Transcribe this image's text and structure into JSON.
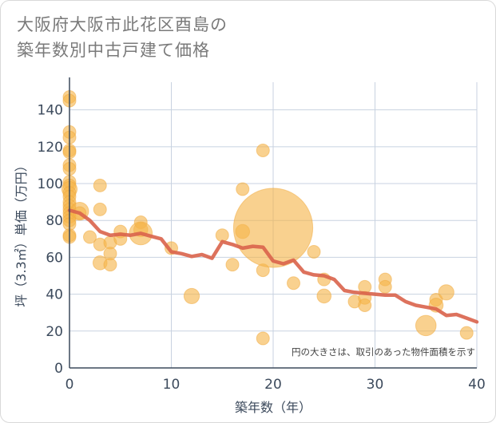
{
  "title_line1": "大阪府大阪市此花区酉島の",
  "title_line2": "築年数別中古戸建て価格",
  "chart_data": {
    "type": "scatter",
    "xlabel": "築年数（年）",
    "ylabel": "坪（3.3㎡）単価（万円）",
    "xlim": [
      0,
      40
    ],
    "ylim": [
      0,
      155
    ],
    "xticks": [
      0,
      10,
      20,
      30,
      40
    ],
    "yticks": [
      0,
      20,
      40,
      60,
      80,
      100,
      120,
      140
    ],
    "grid": true,
    "note": "円の大きさは、取引のあった物件面積を示す",
    "colors": {
      "bubble": "#f5b54a",
      "trend": "#d9634b",
      "grid": "#c8d2e0",
      "axis": "#3c4a5c"
    },
    "points": [
      {
        "x": 0,
        "y": 147,
        "s": 1
      },
      {
        "x": 0,
        "y": 145,
        "s": 1
      },
      {
        "x": 0,
        "y": 128,
        "s": 1
      },
      {
        "x": 0,
        "y": 125,
        "s": 1
      },
      {
        "x": 0,
        "y": 118,
        "s": 1
      },
      {
        "x": 0,
        "y": 117,
        "s": 1
      },
      {
        "x": 0,
        "y": 110,
        "s": 1
      },
      {
        "x": 0,
        "y": 108,
        "s": 1
      },
      {
        "x": 0,
        "y": 101,
        "s": 1
      },
      {
        "x": 0,
        "y": 99,
        "s": 1
      },
      {
        "x": 0,
        "y": 97,
        "s": 1.2
      },
      {
        "x": 0,
        "y": 95,
        "s": 1
      },
      {
        "x": 0,
        "y": 93,
        "s": 1
      },
      {
        "x": 0,
        "y": 90,
        "s": 1
      },
      {
        "x": 0,
        "y": 88,
        "s": 1
      },
      {
        "x": 0,
        "y": 86,
        "s": 1
      },
      {
        "x": 0,
        "y": 84,
        "s": 1
      },
      {
        "x": 0,
        "y": 82,
        "s": 1
      },
      {
        "x": 0,
        "y": 80,
        "s": 1
      },
      {
        "x": 0,
        "y": 78,
        "s": 1
      },
      {
        "x": 0,
        "y": 72,
        "s": 1
      },
      {
        "x": 0,
        "y": 71,
        "s": 1
      },
      {
        "x": 1,
        "y": 85,
        "s": 1.4
      },
      {
        "x": 1,
        "y": 84,
        "s": 1
      },
      {
        "x": 2,
        "y": 71,
        "s": 1
      },
      {
        "x": 3,
        "y": 99,
        "s": 1
      },
      {
        "x": 3,
        "y": 86,
        "s": 1
      },
      {
        "x": 3,
        "y": 67,
        "s": 1
      },
      {
        "x": 3,
        "y": 57,
        "s": 1.1
      },
      {
        "x": 4,
        "y": 68,
        "s": 1
      },
      {
        "x": 4,
        "y": 62,
        "s": 1
      },
      {
        "x": 4,
        "y": 56,
        "s": 1
      },
      {
        "x": 5,
        "y": 74,
        "s": 1
      },
      {
        "x": 5,
        "y": 70,
        "s": 1
      },
      {
        "x": 7,
        "y": 79,
        "s": 1
      },
      {
        "x": 7,
        "y": 75,
        "s": 1.1
      },
      {
        "x": 7,
        "y": 73,
        "s": 1.8
      },
      {
        "x": 10,
        "y": 65,
        "s": 1
      },
      {
        "x": 12,
        "y": 39,
        "s": 1.2
      },
      {
        "x": 15,
        "y": 72,
        "s": 1
      },
      {
        "x": 16,
        "y": 56,
        "s": 1
      },
      {
        "x": 17,
        "y": 97,
        "s": 1
      },
      {
        "x": 17,
        "y": 74,
        "s": 1.1
      },
      {
        "x": 19,
        "y": 118,
        "s": 1
      },
      {
        "x": 19,
        "y": 53,
        "s": 1
      },
      {
        "x": 19,
        "y": 16,
        "s": 1
      },
      {
        "x": 20,
        "y": 76,
        "s": 6.2
      },
      {
        "x": 22,
        "y": 46,
        "s": 1
      },
      {
        "x": 24,
        "y": 63,
        "s": 1
      },
      {
        "x": 25,
        "y": 48,
        "s": 1
      },
      {
        "x": 25,
        "y": 39,
        "s": 1.1
      },
      {
        "x": 28,
        "y": 36,
        "s": 1
      },
      {
        "x": 29,
        "y": 44,
        "s": 1
      },
      {
        "x": 29,
        "y": 38,
        "s": 1
      },
      {
        "x": 29,
        "y": 34,
        "s": 1
      },
      {
        "x": 31,
        "y": 48,
        "s": 1
      },
      {
        "x": 31,
        "y": 44,
        "s": 1
      },
      {
        "x": 35,
        "y": 23,
        "s": 1.6
      },
      {
        "x": 36,
        "y": 37,
        "s": 1
      },
      {
        "x": 36,
        "y": 34,
        "s": 1.1
      },
      {
        "x": 37,
        "y": 41,
        "s": 1.2
      },
      {
        "x": 39,
        "y": 19,
        "s": 1
      }
    ],
    "trend": [
      [
        0,
        85.5
      ],
      [
        1,
        84
      ],
      [
        2,
        80
      ],
      [
        3,
        74
      ],
      [
        4,
        72
      ],
      [
        5,
        72.5
      ],
      [
        6,
        72
      ],
      [
        7,
        73
      ],
      [
        8,
        71.5
      ],
      [
        9,
        70
      ],
      [
        10,
        63
      ],
      [
        11,
        62
      ],
      [
        12,
        60.5
      ],
      [
        13,
        61.5
      ],
      [
        14,
        59.5
      ],
      [
        15,
        68.5
      ],
      [
        16,
        67
      ],
      [
        17,
        65
      ],
      [
        18,
        66
      ],
      [
        19,
        65.5
      ],
      [
        20,
        58
      ],
      [
        21,
        56.5
      ],
      [
        22,
        58.5
      ],
      [
        23,
        52
      ],
      [
        24,
        50.5
      ],
      [
        25,
        50
      ],
      [
        26,
        48
      ],
      [
        27,
        42
      ],
      [
        28,
        41
      ],
      [
        29,
        40.5
      ],
      [
        30,
        40
      ],
      [
        31,
        39.5
      ],
      [
        32,
        39.5
      ],
      [
        33,
        36
      ],
      [
        34,
        34
      ],
      [
        35,
        33
      ],
      [
        36,
        32
      ],
      [
        37,
        28.5
      ],
      [
        38,
        29
      ],
      [
        39,
        27
      ],
      [
        40,
        25
      ]
    ]
  }
}
